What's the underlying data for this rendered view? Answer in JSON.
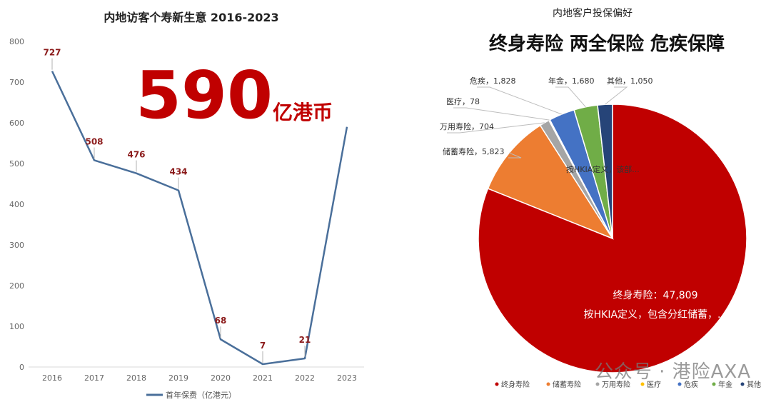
{
  "left_chart": {
    "title": "内地访客个寿新生意 2016-2023",
    "highlight_number": "590",
    "highlight_unit": "亿港币",
    "highlight_color": "#c00000",
    "line_color": "#4a6f9a",
    "label_color": "#8b1a1a",
    "legend_label": "首年保费（亿港元）"
  },
  "right_chart": {
    "subtitle": "内地客户投保偏好",
    "headline": "终身寿险 两全保险 危疾保障",
    "main_label_line1": "终身寿险：47,809",
    "main_label_line2": "按HKIA定义，包含分红储蓄，..."
  },
  "watermark": "公众号 · 港险AXA",
  "chart_data": [
    {
      "type": "line",
      "title": "内地访客个寿新生意 2016-2023",
      "x": [
        "2016",
        "2017",
        "2018",
        "2019",
        "2020",
        "2021",
        "2022",
        "2023"
      ],
      "series": [
        {
          "name": "首年保费（亿港元）",
          "values": [
            727,
            508,
            476,
            434,
            68,
            7,
            21,
            590
          ],
          "data_labels": [
            "727",
            "508",
            "476",
            "434",
            "68",
            "7",
            "21",
            ""
          ]
        }
      ],
      "ylim": [
        0,
        800
      ],
      "yticks": [
        0,
        100,
        200,
        300,
        400,
        500,
        600,
        700,
        800
      ],
      "grid": false,
      "legend": "bottom"
    },
    {
      "type": "pie",
      "title": "内地客户投保偏好",
      "slices": [
        {
          "name": "终身寿险",
          "value": 47809,
          "color": "#c00000",
          "label": ""
        },
        {
          "name": "储蓄寿险",
          "value": 5823,
          "color": "#ed7d31",
          "label": "储蓄寿险，5,823"
        },
        {
          "name": "万用寿险",
          "value": 704,
          "color": "#a5a5a5",
          "label": "万用寿险，704"
        },
        {
          "name": "医疗",
          "value": 78,
          "color": "#ffc000",
          "label": "医疗，78"
        },
        {
          "name": "危疾",
          "value": 1828,
          "color": "#4472c4",
          "label": "危疾，1,828"
        },
        {
          "name": "年金",
          "value": 1680,
          "color": "#70ad47",
          "label": "年金，1,680"
        },
        {
          "name": "其他",
          "value": 1050,
          "color": "#264478",
          "label": "其他，1,050"
        }
      ],
      "extra_label": "按HKIA定义，该部...",
      "legend": "bottom"
    }
  ]
}
